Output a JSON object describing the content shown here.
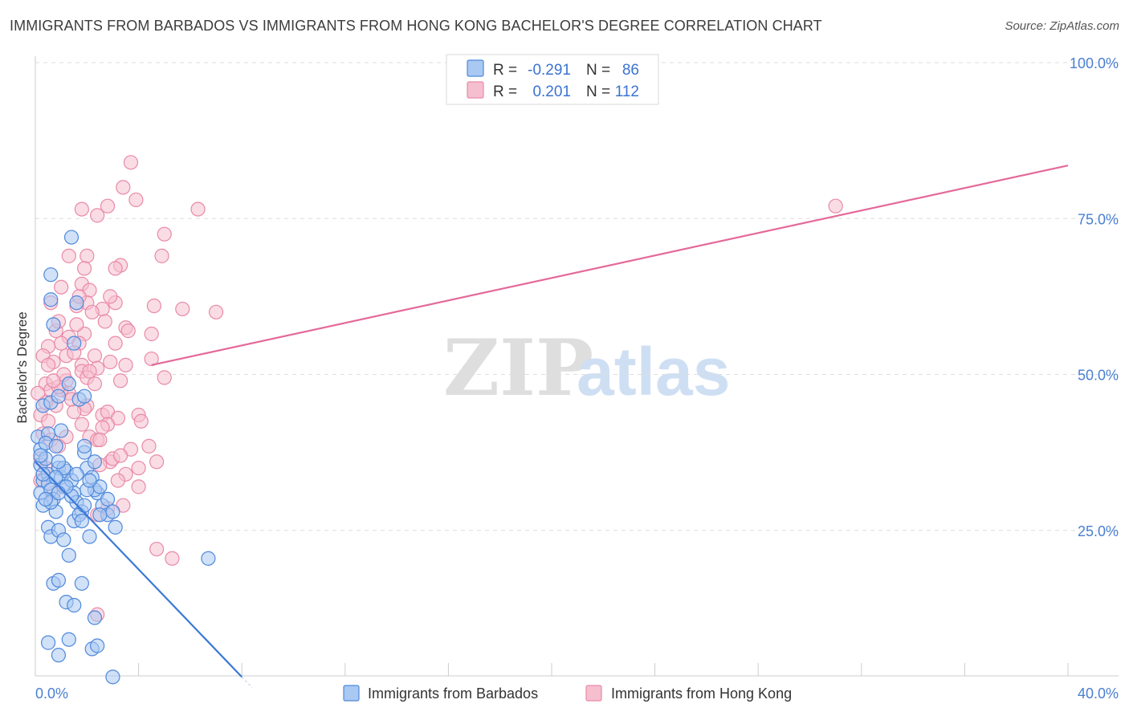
{
  "header": {
    "title": "IMMIGRANTS FROM BARBADOS VS IMMIGRANTS FROM HONG KONG BACHELOR'S DEGREE CORRELATION CHART",
    "source": "Source: ZipAtlas.com"
  },
  "watermark": {
    "zip": "ZIP",
    "atlas": "atlas"
  },
  "legend_top": {
    "rows": [
      {
        "r_label": "R =",
        "r_value": "-0.291",
        "n_label": "N =",
        "n_value": "86"
      },
      {
        "r_label": "R =",
        "r_value": "0.201",
        "n_label": "N =",
        "n_value": "112"
      }
    ]
  },
  "legend_bottom": {
    "series_a": "Immigrants from Barbados",
    "series_b": "Immigrants from Hong Kong"
  },
  "colors": {
    "series_a_fill": "#a9c8f2",
    "series_a_stroke": "#4f89db",
    "series_a_line": "#3a78d6",
    "series_b_fill": "#f5bfd0",
    "series_b_stroke": "#e98aa8",
    "series_b_line": "#e4699a",
    "tick_text": "#4a7fd1",
    "grid": "#dddddd"
  },
  "chart_data": {
    "type": "scatter",
    "title": "IMMIGRANTS FROM BARBADOS VS IMMIGRANTS FROM HONG KONG BACHELOR'S DEGREE CORRELATION CHART",
    "xlabel": "",
    "ylabel": "Bachelor's Degree",
    "xlim": [
      0,
      40
    ],
    "ylim": [
      0,
      100
    ],
    "x_tick_labels": [
      "0.0%",
      "40.0%"
    ],
    "y_tick_labels": [
      "25.0%",
      "50.0%",
      "75.0%",
      "100.0%"
    ],
    "y_ticks": [
      25,
      50,
      75,
      100
    ],
    "series": [
      {
        "name": "Immigrants from Barbados",
        "R": -0.291,
        "N": 86,
        "trend": {
          "x": [
            0.0,
            8.0
          ],
          "y": [
            36.0,
            1.5
          ]
        },
        "points": [
          [
            0.1,
            40.0
          ],
          [
            0.2,
            38.0
          ],
          [
            0.2,
            35.5
          ],
          [
            0.3,
            33.0
          ],
          [
            0.2,
            31.0
          ],
          [
            0.3,
            29.0
          ],
          [
            0.4,
            36.5
          ],
          [
            0.5,
            34.0
          ],
          [
            0.5,
            32.5
          ],
          [
            0.6,
            31.5
          ],
          [
            0.7,
            30.0
          ],
          [
            0.8,
            28.0
          ],
          [
            0.9,
            35.0
          ],
          [
            1.0,
            33.5
          ],
          [
            1.1,
            32.0
          ],
          [
            0.3,
            45.0
          ],
          [
            0.6,
            45.5
          ],
          [
            0.5,
            40.5
          ],
          [
            0.4,
            39.0
          ],
          [
            0.8,
            38.5
          ],
          [
            1.2,
            34.5
          ],
          [
            1.4,
            33.0
          ],
          [
            1.5,
            31.0
          ],
          [
            1.6,
            29.5
          ],
          [
            1.8,
            28.0
          ],
          [
            2.0,
            35.0
          ],
          [
            2.2,
            33.5
          ],
          [
            2.4,
            31.0
          ],
          [
            2.6,
            29.0
          ],
          [
            2.8,
            27.5
          ],
          [
            0.5,
            25.5
          ],
          [
            0.6,
            24.0
          ],
          [
            0.9,
            25.0
          ],
          [
            1.1,
            23.5
          ],
          [
            1.3,
            21.0
          ],
          [
            1.5,
            26.5
          ],
          [
            1.7,
            27.5
          ],
          [
            1.9,
            29.0
          ],
          [
            2.1,
            24.0
          ],
          [
            2.3,
            31.5
          ],
          [
            0.7,
            16.5
          ],
          [
            0.9,
            17.0
          ],
          [
            1.2,
            13.5
          ],
          [
            1.5,
            13.0
          ],
          [
            1.8,
            16.5
          ],
          [
            0.5,
            7.0
          ],
          [
            0.9,
            5.0
          ],
          [
            1.3,
            7.5
          ],
          [
            2.3,
            11.0
          ],
          [
            2.2,
            6.0
          ],
          [
            3.0,
            1.5
          ],
          [
            2.4,
            6.5
          ],
          [
            3.1,
            25.5
          ],
          [
            6.7,
            20.5
          ],
          [
            1.4,
            72.0
          ],
          [
            0.6,
            66.0
          ],
          [
            0.6,
            62.0
          ],
          [
            1.6,
            61.5
          ],
          [
            0.7,
            58.0
          ],
          [
            1.5,
            55.0
          ],
          [
            1.3,
            48.5
          ],
          [
            1.7,
            46.0
          ],
          [
            1.9,
            46.5
          ],
          [
            0.9,
            46.5
          ],
          [
            1.0,
            41.0
          ],
          [
            1.9,
            37.5
          ],
          [
            1.9,
            38.5
          ],
          [
            2.5,
            32.0
          ],
          [
            2.3,
            36.0
          ],
          [
            1.1,
            35.0
          ],
          [
            1.4,
            30.5
          ],
          [
            1.8,
            26.5
          ],
          [
            2.5,
            27.5
          ],
          [
            2.8,
            30.0
          ],
          [
            3.0,
            28.0
          ],
          [
            2.0,
            31.5
          ],
          [
            1.2,
            32.0
          ],
          [
            0.8,
            33.5
          ],
          [
            0.6,
            29.5
          ],
          [
            0.2,
            37.0
          ],
          [
            0.3,
            34.0
          ],
          [
            0.4,
            30.0
          ],
          [
            0.9,
            36.0
          ],
          [
            1.6,
            34.0
          ],
          [
            0.9,
            31.0
          ],
          [
            2.1,
            33.0
          ]
        ]
      },
      {
        "name": "Immigrants from Hong Kong",
        "R": 0.201,
        "N": 112,
        "trend": {
          "x": [
            4.5,
            40.0
          ],
          "y": [
            51.5,
            83.5
          ]
        },
        "points": [
          [
            3.7,
            84.0
          ],
          [
            3.4,
            80.0
          ],
          [
            3.9,
            78.0
          ],
          [
            2.8,
            77.0
          ],
          [
            1.8,
            76.5
          ],
          [
            2.4,
            75.5
          ],
          [
            6.3,
            76.5
          ],
          [
            31.0,
            77.0
          ],
          [
            5.0,
            72.5
          ],
          [
            2.0,
            69.0
          ],
          [
            3.3,
            67.5
          ],
          [
            3.1,
            67.0
          ],
          [
            4.9,
            69.0
          ],
          [
            1.3,
            69.0
          ],
          [
            1.9,
            67.0
          ],
          [
            1.8,
            64.5
          ],
          [
            2.1,
            63.5
          ],
          [
            1.0,
            64.0
          ],
          [
            4.6,
            61.0
          ],
          [
            5.7,
            60.5
          ],
          [
            7.0,
            60.0
          ],
          [
            2.6,
            60.5
          ],
          [
            3.1,
            61.5
          ],
          [
            2.0,
            61.5
          ],
          [
            1.6,
            61.0
          ],
          [
            0.6,
            61.5
          ],
          [
            2.7,
            58.5
          ],
          [
            3.5,
            57.5
          ],
          [
            3.6,
            57.0
          ],
          [
            4.5,
            56.5
          ],
          [
            1.9,
            56.5
          ],
          [
            1.3,
            56.0
          ],
          [
            0.8,
            57.0
          ],
          [
            3.1,
            55.0
          ],
          [
            1.0,
            55.0
          ],
          [
            0.5,
            54.5
          ],
          [
            1.7,
            55.0
          ],
          [
            2.3,
            53.0
          ],
          [
            1.8,
            51.5
          ],
          [
            1.2,
            53.0
          ],
          [
            3.5,
            51.5
          ],
          [
            4.5,
            52.5
          ],
          [
            0.3,
            53.0
          ],
          [
            0.7,
            52.0
          ],
          [
            2.4,
            51.0
          ],
          [
            1.8,
            50.5
          ],
          [
            2.0,
            49.5
          ],
          [
            5.0,
            49.5
          ],
          [
            1.2,
            49.0
          ],
          [
            0.4,
            48.5
          ],
          [
            0.6,
            47.5
          ],
          [
            1.3,
            47.0
          ],
          [
            2.3,
            48.5
          ],
          [
            1.0,
            47.5
          ],
          [
            1.4,
            46.0
          ],
          [
            2.0,
            45.0
          ],
          [
            1.9,
            44.5
          ],
          [
            2.6,
            43.5
          ],
          [
            2.8,
            44.0
          ],
          [
            3.2,
            43.0
          ],
          [
            4.0,
            43.5
          ],
          [
            4.1,
            42.5
          ],
          [
            2.8,
            42.0
          ],
          [
            2.6,
            41.5
          ],
          [
            2.1,
            40.0
          ],
          [
            2.4,
            39.5
          ],
          [
            0.2,
            43.5
          ],
          [
            0.5,
            42.5
          ],
          [
            0.3,
            40.5
          ],
          [
            0.6,
            39.5
          ],
          [
            2.9,
            36.0
          ],
          [
            2.5,
            35.5
          ],
          [
            3.0,
            36.5
          ],
          [
            3.5,
            34.0
          ],
          [
            4.0,
            35.0
          ],
          [
            3.7,
            38.0
          ],
          [
            4.7,
            36.0
          ],
          [
            3.2,
            33.0
          ],
          [
            4.0,
            32.0
          ],
          [
            3.4,
            29.0
          ],
          [
            2.4,
            27.5
          ],
          [
            2.8,
            28.5
          ],
          [
            4.7,
            22.0
          ],
          [
            5.3,
            20.5
          ],
          [
            2.4,
            11.5
          ],
          [
            0.2,
            36.5
          ],
          [
            0.4,
            35.0
          ],
          [
            0.2,
            33.0
          ],
          [
            0.7,
            31.0
          ],
          [
            0.9,
            48.0
          ],
          [
            1.1,
            50.0
          ],
          [
            0.7,
            49.0
          ],
          [
            0.5,
            51.5
          ],
          [
            1.5,
            53.5
          ],
          [
            1.6,
            58.0
          ],
          [
            2.2,
            60.0
          ],
          [
            0.9,
            58.5
          ],
          [
            1.7,
            62.5
          ],
          [
            2.9,
            62.5
          ],
          [
            0.8,
            45.0
          ],
          [
            1.5,
            44.0
          ],
          [
            2.1,
            50.5
          ],
          [
            2.9,
            52.0
          ],
          [
            3.3,
            49.0
          ],
          [
            0.4,
            45.5
          ],
          [
            0.1,
            47.0
          ],
          [
            1.8,
            42.0
          ],
          [
            2.5,
            39.5
          ],
          [
            3.3,
            37.0
          ],
          [
            4.4,
            38.5
          ],
          [
            1.2,
            40.0
          ],
          [
            0.9,
            38.5
          ]
        ]
      }
    ]
  }
}
